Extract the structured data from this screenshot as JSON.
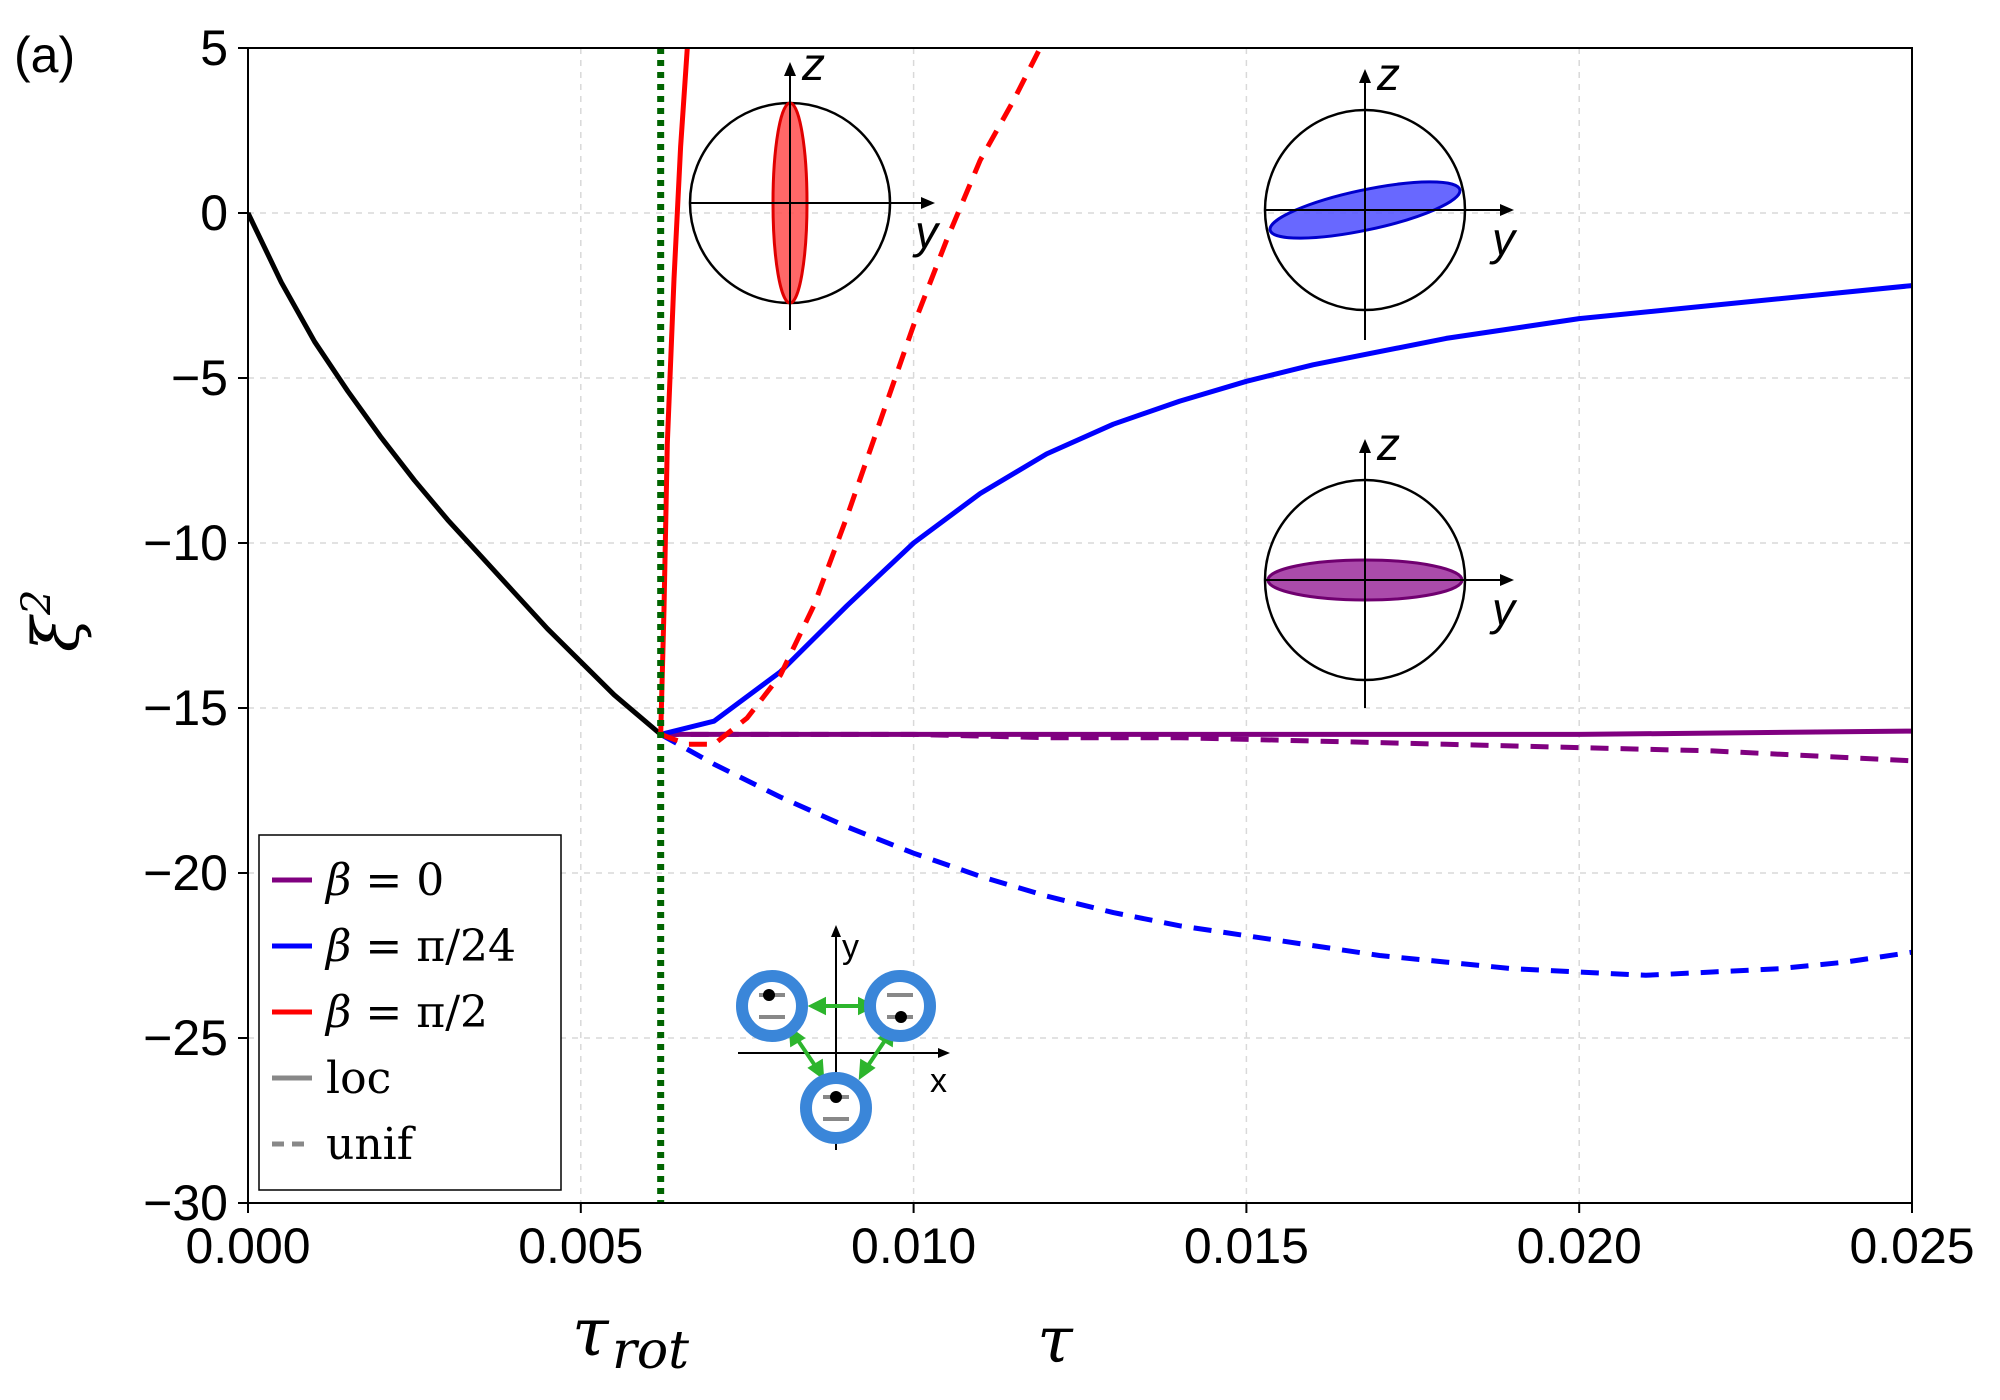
{
  "panel_label": "(a)",
  "colors": {
    "beta0": "#800080",
    "beta_pi24": "#0000ff",
    "beta_pi2": "#ff0000",
    "black": "#000000",
    "tau_rot_marker": "#006400",
    "grid": "#d9d9d9",
    "site_ring": "#3a86d9",
    "hopping_arrow": "#2db52d",
    "level_bar": "#888888"
  },
  "chart_data": {
    "type": "line",
    "xlabel": "τ",
    "ylabel": "ξ",
    "ylabel_superscript": "2",
    "xlim": [
      0.0,
      0.025
    ],
    "ylim": [
      -30,
      5
    ],
    "xticks": [
      0.0,
      0.005,
      0.01,
      0.015,
      0.02,
      0.025
    ],
    "xtick_labels": [
      "0.000",
      "0.005",
      "0.010",
      "0.015",
      "0.020",
      "0.025"
    ],
    "yticks": [
      5,
      0,
      -5,
      -10,
      -15,
      -20,
      -25,
      -30
    ],
    "ytick_labels": [
      "5",
      "0",
      "−5",
      "−10",
      "−15",
      "−20",
      "−25",
      "−30"
    ],
    "grid": true,
    "tau_rot": {
      "x": 0.0062,
      "label_main": "τ",
      "label_sub": "rot",
      "style": "dotted"
    },
    "legend": {
      "placement": "bottom-left",
      "entries": [
        {
          "prefix": "β",
          "text": " = 0",
          "color_key": "beta0",
          "style": "solid"
        },
        {
          "prefix": "β",
          "text": " = π/24",
          "color_key": "beta_pi24",
          "style": "solid"
        },
        {
          "prefix": "β",
          "text": " = π/2",
          "color_key": "beta_pi2",
          "style": "solid"
        },
        {
          "prefix": "",
          "text": "loc",
          "color_key": "level_bar",
          "style": "solid"
        },
        {
          "prefix": "",
          "text": "unif",
          "color_key": "level_bar",
          "style": "dashed"
        }
      ]
    },
    "series": [
      {
        "color_key": "black",
        "style": "solid",
        "points": [
          [
            0.0,
            0.0
          ],
          [
            0.0005,
            -2.1
          ],
          [
            0.001,
            -3.9
          ],
          [
            0.0015,
            -5.4
          ],
          [
            0.002,
            -6.8
          ],
          [
            0.0025,
            -8.1
          ],
          [
            0.003,
            -9.3
          ],
          [
            0.0035,
            -10.4
          ],
          [
            0.004,
            -11.5
          ],
          [
            0.0045,
            -12.6
          ],
          [
            0.005,
            -13.6
          ],
          [
            0.0055,
            -14.6
          ],
          [
            0.0062,
            -15.8
          ]
        ]
      },
      {
        "color_key": "beta0",
        "style": "solid",
        "points": [
          [
            0.0062,
            -15.8
          ],
          [
            0.01,
            -15.8
          ],
          [
            0.015,
            -15.8
          ],
          [
            0.02,
            -15.8
          ],
          [
            0.025,
            -15.7
          ]
        ]
      },
      {
        "color_key": "beta0",
        "style": "dashed",
        "points": [
          [
            0.0062,
            -15.8
          ],
          [
            0.008,
            -15.8
          ],
          [
            0.01,
            -15.8
          ],
          [
            0.012,
            -15.9
          ],
          [
            0.014,
            -15.9
          ],
          [
            0.016,
            -16.0
          ],
          [
            0.018,
            -16.1
          ],
          [
            0.02,
            -16.2
          ],
          [
            0.022,
            -16.3
          ],
          [
            0.024,
            -16.5
          ],
          [
            0.025,
            -16.6
          ]
        ]
      },
      {
        "color_key": "beta_pi24",
        "style": "solid",
        "points": [
          [
            0.0062,
            -15.8
          ],
          [
            0.007,
            -15.4
          ],
          [
            0.008,
            -13.9
          ],
          [
            0.009,
            -11.9
          ],
          [
            0.01,
            -10.0
          ],
          [
            0.011,
            -8.5
          ],
          [
            0.012,
            -7.3
          ],
          [
            0.013,
            -6.4
          ],
          [
            0.014,
            -5.7
          ],
          [
            0.015,
            -5.1
          ],
          [
            0.016,
            -4.6
          ],
          [
            0.018,
            -3.8
          ],
          [
            0.02,
            -3.2
          ],
          [
            0.022,
            -2.8
          ],
          [
            0.025,
            -2.2
          ]
        ]
      },
      {
        "color_key": "beta_pi24",
        "style": "dashed",
        "points": [
          [
            0.0062,
            -15.8
          ],
          [
            0.007,
            -16.7
          ],
          [
            0.008,
            -17.7
          ],
          [
            0.009,
            -18.6
          ],
          [
            0.01,
            -19.4
          ],
          [
            0.011,
            -20.1
          ],
          [
            0.012,
            -20.7
          ],
          [
            0.013,
            -21.2
          ],
          [
            0.014,
            -21.6
          ],
          [
            0.015,
            -21.9
          ],
          [
            0.016,
            -22.2
          ],
          [
            0.017,
            -22.5
          ],
          [
            0.018,
            -22.7
          ],
          [
            0.019,
            -22.9
          ],
          [
            0.02,
            -23.0
          ],
          [
            0.021,
            -23.1
          ],
          [
            0.022,
            -23.0
          ],
          [
            0.023,
            -22.9
          ],
          [
            0.024,
            -22.7
          ],
          [
            0.025,
            -22.4
          ]
        ]
      },
      {
        "color_key": "beta_pi2",
        "style": "solid",
        "points": [
          [
            0.0062,
            -15.8
          ],
          [
            0.00625,
            -12.0
          ],
          [
            0.0063,
            -7.0
          ],
          [
            0.0064,
            -2.0
          ],
          [
            0.0065,
            2.0
          ],
          [
            0.0066,
            5.0
          ]
        ]
      },
      {
        "color_key": "beta_pi2",
        "style": "dashed",
        "points": [
          [
            0.0062,
            -15.8
          ],
          [
            0.0066,
            -16.1
          ],
          [
            0.007,
            -16.1
          ],
          [
            0.0075,
            -15.3
          ],
          [
            0.008,
            -14.0
          ],
          [
            0.0085,
            -11.9
          ],
          [
            0.009,
            -9.2
          ],
          [
            0.0095,
            -6.3
          ],
          [
            0.01,
            -3.4
          ],
          [
            0.0105,
            -0.8
          ],
          [
            0.011,
            1.6
          ],
          [
            0.0115,
            3.4
          ],
          [
            0.0119,
            5.0
          ]
        ]
      }
    ]
  },
  "insets": {
    "bloch_red": {
      "z_label": "z",
      "y_label": "y"
    },
    "bloch_blue": {
      "z_label": "z",
      "y_label": "y"
    },
    "bloch_purple": {
      "z_label": "z",
      "y_label": "y"
    },
    "lattice": {
      "x_label": "x",
      "y_label": "y"
    }
  }
}
